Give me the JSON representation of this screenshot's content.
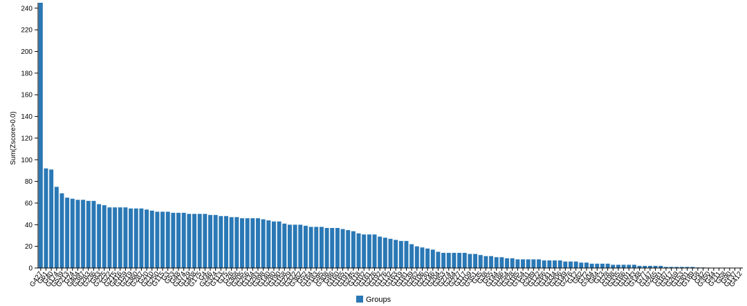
{
  "chart_data": {
    "type": "bar",
    "title": "",
    "xlabel": "",
    "ylabel": "Sum(Zscore>0.0)",
    "ylim": [
      0,
      245
    ],
    "yticks": [
      0,
      20,
      40,
      60,
      80,
      100,
      120,
      140,
      160,
      180,
      200,
      220,
      240
    ],
    "grid": false,
    "legend": "bottom-center",
    "bar_color": "#2a78b5",
    "series": [
      {
        "name": "Groups"
      }
    ],
    "categories": [
      "G427",
      "G61",
      "G40",
      "G174",
      "G539",
      "G213",
      "G24",
      "G404",
      "G387",
      "G283",
      "G236",
      "G83",
      "G225",
      "G22",
      "G215",
      "G416",
      "G159",
      "G219",
      "G360",
      "G287",
      "G20",
      "G210",
      "G250",
      "G115",
      "G3",
      "G53",
      "G48",
      "G374",
      "G129",
      "G408",
      "G175",
      "G4",
      "G246",
      "G324",
      "G113",
      "G75",
      "G26",
      "G368",
      "G205",
      "G256",
      "G134",
      "G293",
      "G398",
      "G140",
      "G280",
      "G190",
      "G158",
      "G229",
      "G322",
      "G362",
      "G52",
      "G164",
      "G183",
      "G95",
      "G308",
      "G86",
      "G160",
      "G165",
      "G191",
      "G245",
      "G118",
      "G102",
      "G161",
      "G226",
      "G192",
      "G176",
      "G132",
      "G163",
      "G119",
      "G181",
      "G139",
      "G262",
      "G106",
      "G230",
      "G146",
      "G204",
      "G353",
      "G274",
      "G284",
      "G227",
      "G117",
      "G109",
      "G351",
      "G35",
      "G38",
      "G55",
      "G144",
      "G186",
      "G254",
      "G328",
      "G185",
      "G154",
      "G31",
      "G289",
      "G122",
      "G266",
      "G141",
      "G334",
      "G206",
      "G149",
      "G276",
      "G12",
      "G62",
      "G72",
      "G304",
      "G84",
      "G13",
      "G28",
      "G198",
      "G335",
      "G166",
      "G101",
      "G243",
      "G148",
      "G77",
      "G147",
      "G265",
      "G81",
      "G167",
      "G317",
      "G269",
      "G153",
      "G301",
      "G189",
      "G8",
      "G42",
      "G350",
      "G44",
      "G211",
      "G58",
      "G90",
      "G137",
      "G412"
    ],
    "values": [
      245,
      92,
      91,
      75,
      69,
      65,
      64,
      63,
      63,
      62,
      62,
      59,
      58,
      56,
      56,
      56,
      56,
      55,
      55,
      55,
      54,
      53,
      52,
      52,
      52,
      51,
      51,
      51,
      50,
      50,
      50,
      50,
      49,
      49,
      48,
      48,
      47,
      47,
      46,
      46,
      46,
      46,
      45,
      44,
      43,
      43,
      41,
      40,
      40,
      40,
      39,
      38,
      38,
      38,
      37,
      37,
      37,
      36,
      35,
      34,
      32,
      31,
      31,
      31,
      29,
      28,
      27,
      26,
      25,
      25,
      22,
      20,
      19,
      18,
      17,
      15,
      14,
      14,
      14,
      14,
      14,
      13,
      13,
      12,
      11,
      11,
      10,
      10,
      9,
      9,
      8,
      8,
      8,
      8,
      8,
      7,
      7,
      7,
      7,
      6,
      6,
      6,
      5,
      5,
      4,
      4,
      4,
      4,
      3,
      3,
      3,
      3,
      3,
      2,
      2,
      2,
      2,
      2,
      1,
      1,
      1,
      1,
      1,
      1,
      0.5,
      0.5,
      0.3,
      0.3,
      0.2,
      0.2,
      0.1,
      0.1,
      0.1
    ]
  }
}
